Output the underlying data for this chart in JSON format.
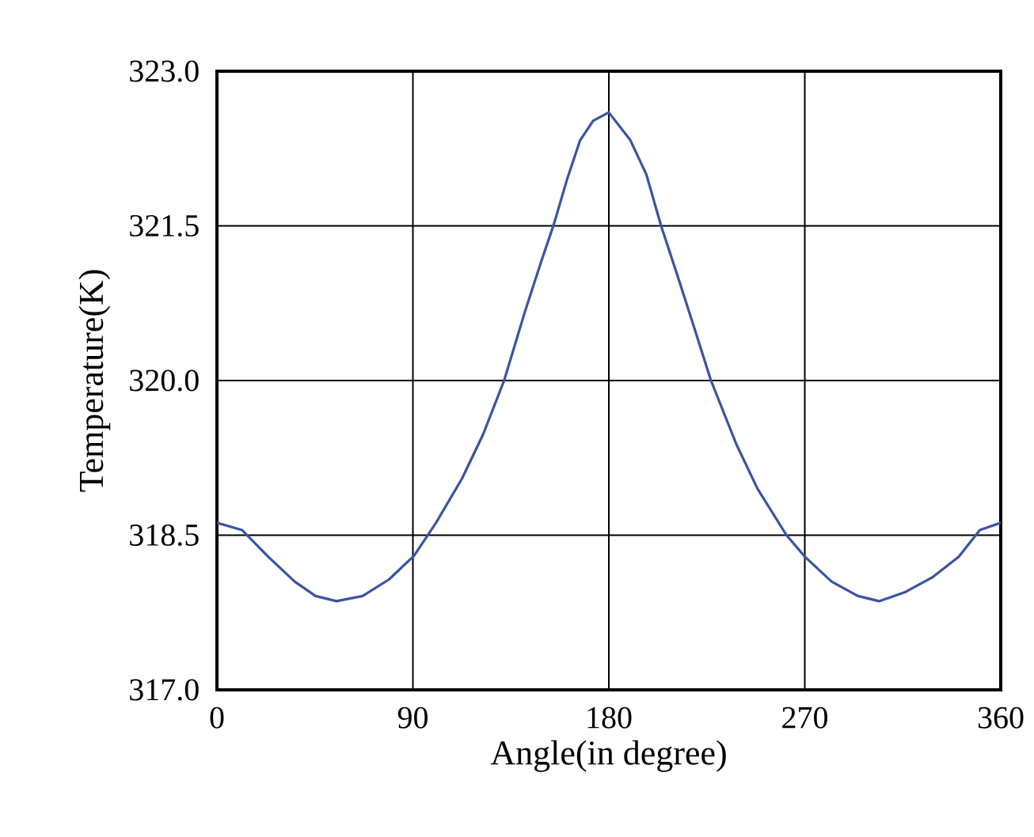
{
  "chart_data": {
    "type": "line",
    "xlabel": "Angle(in degree)",
    "ylabel": "Temperature(K)",
    "xlim": [
      0,
      360
    ],
    "ylim": [
      317,
      323
    ],
    "xticks": [
      0,
      90,
      180,
      270,
      360
    ],
    "yticks": [
      {
        "value": 317,
        "label": "317.0"
      },
      {
        "value": 318.5,
        "label": "318.5"
      },
      {
        "value": 320,
        "label": "320.0"
      },
      {
        "value": 321.5,
        "label": "321.5"
      },
      {
        "value": 323,
        "label": "323.0"
      }
    ],
    "grid": true,
    "marker": "none",
    "line_style": "solid",
    "x": [
      0,
      11.5,
      23.6,
      35.7,
      45.3,
      54.9,
      66.9,
      79,
      90.5,
      100.6,
      112.6,
      122.3,
      131.9,
      141.5,
      148.7,
      154.8,
      160.8,
      166.8,
      172.8,
      180,
      189.9,
      197.2,
      204,
      211.8,
      219.1,
      226.9,
      238.6,
      248.3,
      261.6,
      270.1,
      282.3,
      294.4,
      304.1,
      316.3,
      328.5,
      340.7,
      350.4,
      360
    ],
    "series": [
      {
        "color": "#3a53a4",
        "values": [
          318.62,
          318.55,
          318.29,
          318.05,
          317.91,
          317.86,
          317.91,
          318.07,
          318.3,
          318.62,
          319.05,
          319.48,
          320.0,
          320.67,
          321.14,
          321.52,
          321.95,
          322.33,
          322.52,
          322.6,
          322.33,
          322.0,
          321.5,
          321.0,
          320.52,
          320.0,
          319.38,
          318.95,
          318.5,
          318.29,
          318.05,
          317.91,
          317.86,
          317.95,
          318.09,
          318.29,
          318.55,
          318.62
        ]
      }
    ]
  }
}
